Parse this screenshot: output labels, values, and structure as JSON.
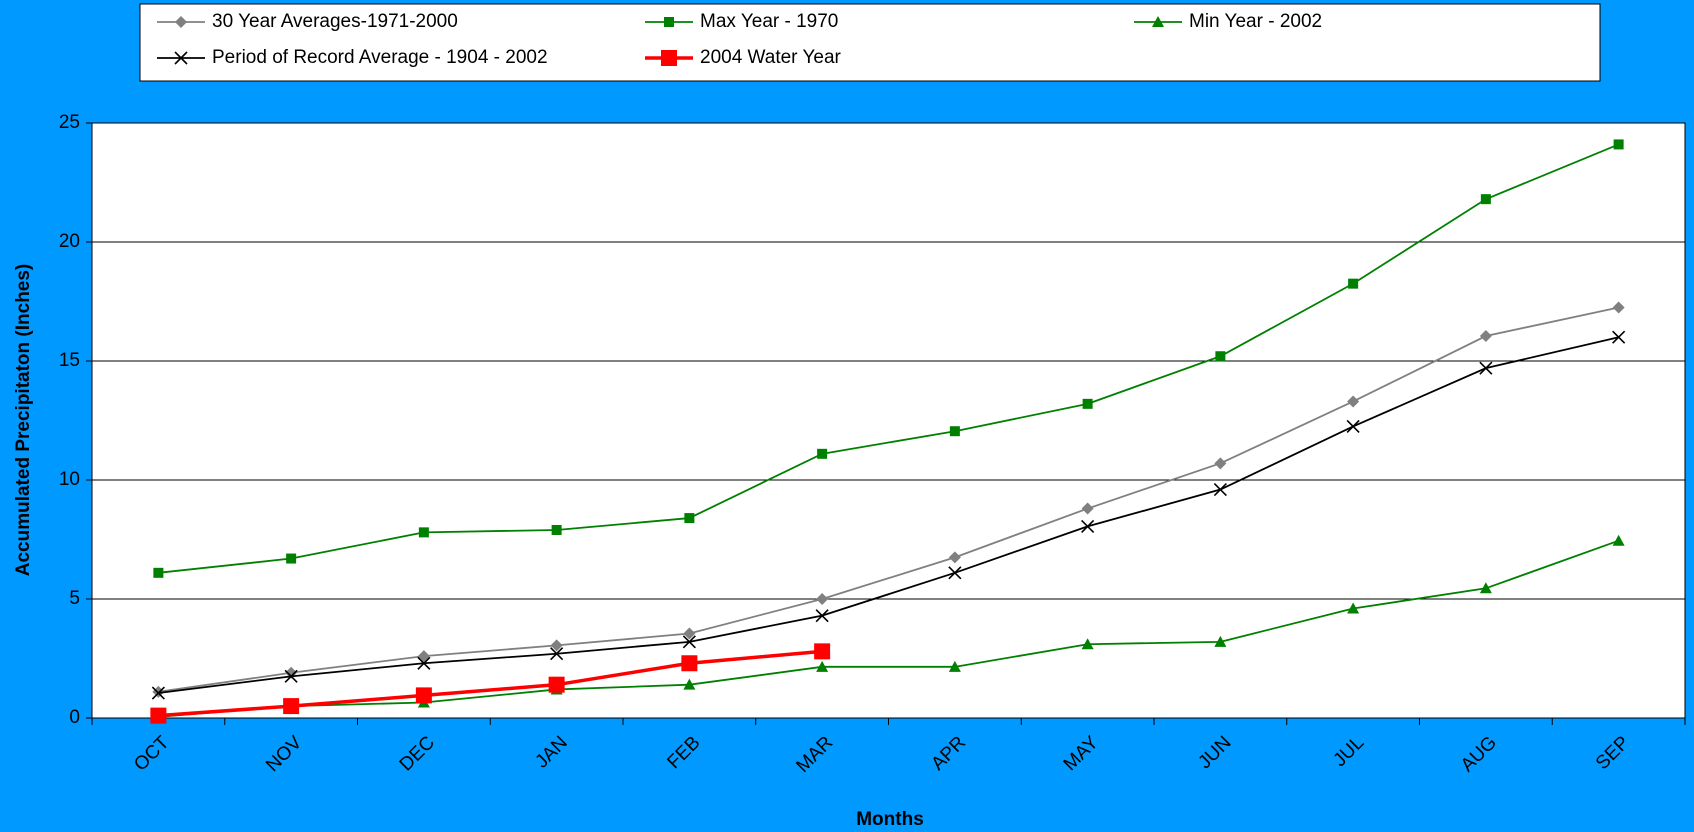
{
  "chart_data": {
    "type": "line",
    "x_label": "Months",
    "y_label": "Accumulated Precipitaton (Inches)",
    "categories": [
      "OCT",
      "NOV",
      "DEC",
      "JAN",
      "FEB",
      "MAR",
      "APR",
      "MAY",
      "JUN",
      "JUL",
      "AUG",
      "SEP"
    ],
    "series": [
      {
        "name": "30 Year Averages-1971-2000",
        "color": "#808080",
        "marker": "diamond",
        "values": [
          1.1,
          1.9,
          2.6,
          3.05,
          3.55,
          5.0,
          6.75,
          8.8,
          10.7,
          13.3,
          16.05,
          17.25
        ]
      },
      {
        "name": "Max Year - 1970",
        "color": "#008000",
        "marker": "square",
        "values": [
          6.1,
          6.7,
          7.8,
          7.9,
          8.4,
          11.1,
          12.05,
          13.2,
          15.2,
          18.25,
          21.8,
          24.1
        ]
      },
      {
        "name": "Min Year - 2002",
        "color": "#008000",
        "marker": "triangle",
        "values": [
          0.05,
          0.5,
          0.65,
          1.2,
          1.4,
          2.15,
          2.15,
          3.1,
          3.2,
          4.6,
          5.45,
          7.45
        ]
      },
      {
        "name": "Period of Record Average - 1904 - 2002",
        "color": "#000000",
        "marker": "x",
        "values": [
          1.05,
          1.75,
          2.3,
          2.7,
          3.2,
          4.3,
          6.1,
          8.05,
          9.6,
          12.25,
          14.7,
          16.0
        ]
      },
      {
        "name": "2004 Water Year",
        "color": "#ff0000",
        "marker": "big-square",
        "values": [
          0.1,
          0.5,
          0.95,
          1.4,
          2.3,
          2.8,
          null,
          null,
          null,
          null,
          null,
          null
        ]
      }
    ],
    "ylim": [
      0,
      25
    ],
    "yticks": [
      0,
      5,
      10,
      15,
      20,
      25
    ],
    "grid": true
  }
}
